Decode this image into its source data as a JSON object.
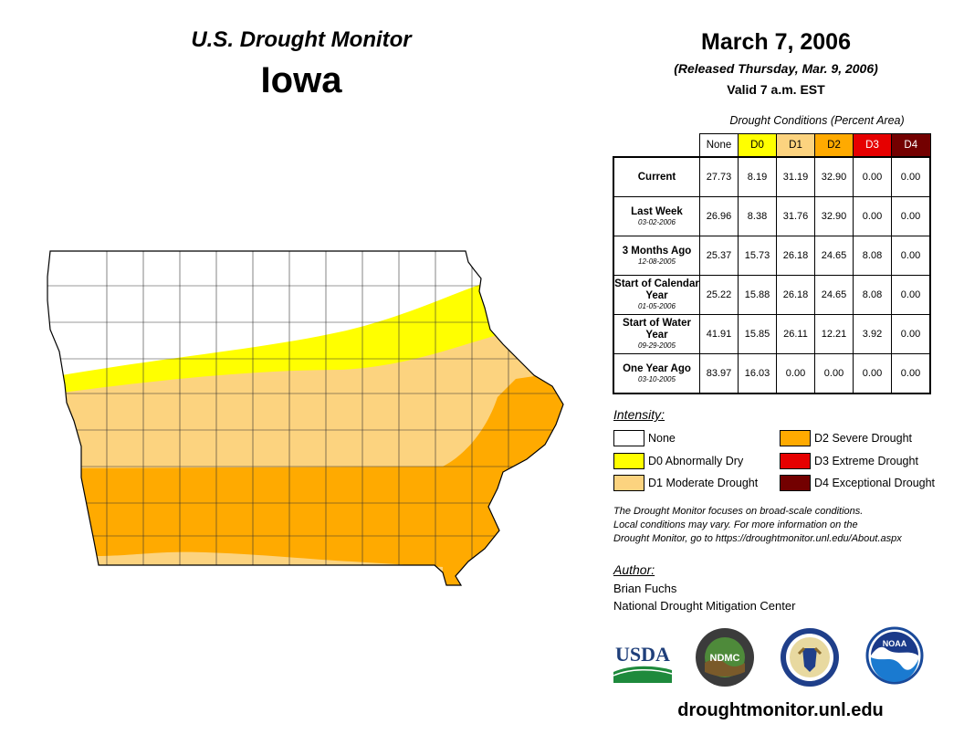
{
  "header": {
    "monitor_title": "U.S. Drought Monitor",
    "state": "Iowa",
    "date": "March 7, 2006",
    "released": "(Released Thursday, Mar. 9, 2006)",
    "valid": "Valid 7 a.m. EST"
  },
  "table": {
    "caption": "Drought Conditions (Percent Area)",
    "columns": [
      "None",
      "D0",
      "D1",
      "D2",
      "D3",
      "D4"
    ],
    "rows": [
      {
        "label": "Current",
        "sub": "",
        "values": [
          "27.73",
          "8.19",
          "31.19",
          "32.90",
          "0.00",
          "0.00"
        ]
      },
      {
        "label": "Last Week",
        "sub": "03-02-2006",
        "values": [
          "26.96",
          "8.38",
          "31.76",
          "32.90",
          "0.00",
          "0.00"
        ]
      },
      {
        "label": "3 Months Ago",
        "sub": "12-08-2005",
        "values": [
          "25.37",
          "15.73",
          "26.18",
          "24.65",
          "8.08",
          "0.00"
        ]
      },
      {
        "label": "Start of Calendar Year",
        "sub": "01-05-2006",
        "values": [
          "25.22",
          "15.88",
          "26.18",
          "24.65",
          "8.08",
          "0.00"
        ]
      },
      {
        "label": "Start of Water Year",
        "sub": "09-29-2005",
        "values": [
          "41.91",
          "15.85",
          "26.11",
          "12.21",
          "3.92",
          "0.00"
        ]
      },
      {
        "label": "One Year Ago",
        "sub": "03-10-2005",
        "values": [
          "83.97",
          "16.03",
          "0.00",
          "0.00",
          "0.00",
          "0.00"
        ]
      }
    ]
  },
  "legend": {
    "title": "Intensity:",
    "items": [
      {
        "label": "None",
        "color": "#ffffff"
      },
      {
        "label": "D0 Abnormally Dry",
        "color": "#ffff00"
      },
      {
        "label": "D1 Moderate Drought",
        "color": "#fcd37f"
      },
      {
        "label": "D2 Severe Drought",
        "color": "#ffaa00"
      },
      {
        "label": "D3 Extreme Drought",
        "color": "#e60000"
      },
      {
        "label": "D4 Exceptional Drought",
        "color": "#730000"
      }
    ]
  },
  "disclaimer": {
    "line1": "The Drought Monitor focuses on broad-scale conditions.",
    "line2": "Local conditions may vary. For more information on the",
    "line3": "Drought Monitor, go to https://droughtmonitor.unl.edu/About.aspx"
  },
  "author": {
    "title": "Author:",
    "name": "Brian Fuchs",
    "org": "National Drought Mitigation Center"
  },
  "logos": {
    "usda": "USDA",
    "ndmc": "NDMC",
    "noaa": "NOAA"
  },
  "website": "droughtmonitor.unl.edu"
}
